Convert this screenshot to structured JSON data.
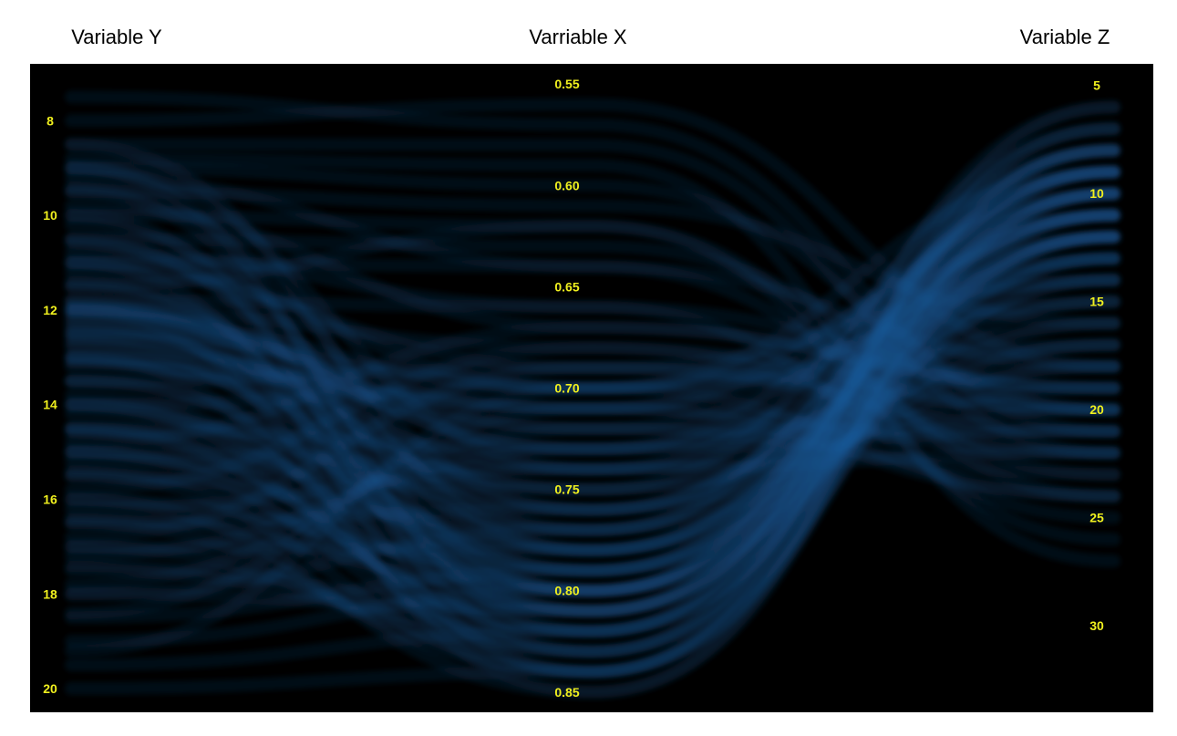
{
  "chart_data": {
    "type": "parallel_coordinates",
    "background_color": "#000000",
    "line_color": "#1f5f9f",
    "tick_color": "#f0f01e",
    "axes": [
      {
        "id": "y",
        "name": "Variable Y",
        "ticks": [
          8,
          10,
          12,
          14,
          16,
          18,
          20
        ],
        "tick_labels": [
          "8",
          "10",
          "12",
          "14",
          "16",
          "18",
          "20"
        ],
        "range": [
          6.8,
          20.5
        ]
      },
      {
        "id": "x",
        "name": "Varriable X",
        "ticks": [
          0.55,
          0.6,
          0.65,
          0.7,
          0.75,
          0.8,
          0.85
        ],
        "tick_labels": [
          "0.55",
          "0.60",
          "0.65",
          "0.70",
          "0.75",
          "0.80",
          "0.85"
        ],
        "range": [
          0.54,
          0.86
        ]
      },
      {
        "id": "z",
        "name": "Variable Z",
        "ticks": [
          5,
          10,
          15,
          20,
          25,
          30
        ],
        "tick_labels": [
          "5",
          "10",
          "15",
          "20",
          "25",
          "30"
        ],
        "range": [
          4,
          34
        ]
      }
    ],
    "records": [
      [
        8.0,
        0.56,
        18
      ],
      [
        8.5,
        0.58,
        22
      ],
      [
        9.0,
        0.6,
        20
      ],
      [
        9.5,
        0.61,
        16
      ],
      [
        10.0,
        0.62,
        24
      ],
      [
        10.5,
        0.63,
        20
      ],
      [
        11.0,
        0.64,
        18
      ],
      [
        11.5,
        0.62,
        26
      ],
      [
        7.5,
        0.57,
        21
      ],
      [
        8.8,
        0.59,
        27
      ],
      [
        9.2,
        0.64,
        23
      ],
      [
        10.8,
        0.66,
        19
      ],
      [
        12.0,
        0.68,
        22
      ],
      [
        12.5,
        0.7,
        17
      ],
      [
        13.0,
        0.71,
        24
      ],
      [
        13.5,
        0.69,
        20
      ],
      [
        14.0,
        0.7,
        15
      ],
      [
        11.8,
        0.66,
        25
      ],
      [
        12.8,
        0.72,
        21
      ],
      [
        14.5,
        0.73,
        18
      ],
      [
        15.0,
        0.74,
        22
      ],
      [
        9.8,
        0.67,
        19
      ],
      [
        11.2,
        0.69,
        14
      ],
      [
        12.2,
        0.7,
        12
      ],
      [
        13.2,
        0.71,
        11
      ],
      [
        11.0,
        0.7,
        9
      ],
      [
        12.0,
        0.73,
        10
      ],
      [
        12.5,
        0.75,
        8
      ],
      [
        13.0,
        0.77,
        7
      ],
      [
        13.5,
        0.78,
        9
      ],
      [
        14.0,
        0.8,
        6
      ],
      [
        14.5,
        0.82,
        7
      ],
      [
        15.0,
        0.83,
        8
      ],
      [
        15.5,
        0.84,
        6
      ],
      [
        16.0,
        0.85,
        9
      ],
      [
        16.5,
        0.84,
        11
      ],
      [
        17.0,
        0.83,
        10
      ],
      [
        17.5,
        0.82,
        12
      ],
      [
        18.0,
        0.81,
        13
      ],
      [
        18.5,
        0.79,
        11
      ],
      [
        19.0,
        0.8,
        14
      ],
      [
        19.5,
        0.82,
        12
      ],
      [
        20.0,
        0.84,
        10
      ],
      [
        12.0,
        0.76,
        11
      ],
      [
        12.3,
        0.79,
        9
      ],
      [
        11.5,
        0.8,
        8
      ],
      [
        10.5,
        0.81,
        10
      ],
      [
        9.5,
        0.8,
        12
      ],
      [
        8.5,
        0.78,
        11
      ],
      [
        9.0,
        0.82,
        7
      ],
      [
        10.0,
        0.83,
        8
      ],
      [
        11.0,
        0.84,
        9
      ],
      [
        12.0,
        0.85,
        10
      ],
      [
        13.0,
        0.84,
        12
      ],
      [
        14.0,
        0.83,
        13
      ],
      [
        15.0,
        0.8,
        14
      ],
      [
        16.0,
        0.79,
        15
      ],
      [
        17.0,
        0.78,
        16
      ],
      [
        18.0,
        0.77,
        17
      ],
      [
        16.5,
        0.76,
        13
      ],
      [
        15.5,
        0.77,
        12
      ],
      [
        14.5,
        0.78,
        11
      ],
      [
        13.5,
        0.79,
        10
      ],
      [
        12.7,
        0.8,
        9
      ],
      [
        11.8,
        0.81,
        8
      ],
      [
        12.1,
        0.72,
        13
      ],
      [
        12.4,
        0.71,
        14
      ],
      [
        11.9,
        0.73,
        15
      ],
      [
        12.6,
        0.74,
        16
      ],
      [
        13.1,
        0.75,
        17
      ],
      [
        14.2,
        0.76,
        18
      ],
      [
        15.2,
        0.75,
        19
      ],
      [
        16.2,
        0.74,
        20
      ],
      [
        17.2,
        0.73,
        21
      ],
      [
        17.8,
        0.72,
        23
      ],
      [
        18.4,
        0.71,
        22
      ],
      [
        19.2,
        0.7,
        24
      ],
      [
        16.8,
        0.69,
        21
      ],
      [
        15.8,
        0.68,
        20
      ],
      [
        14.8,
        0.67,
        19
      ],
      [
        9.0,
        0.74,
        10
      ],
      [
        9.4,
        0.76,
        11
      ],
      [
        10.2,
        0.77,
        9
      ],
      [
        10.6,
        0.78,
        12
      ],
      [
        11.4,
        0.79,
        13
      ],
      [
        13.8,
        0.81,
        12
      ],
      [
        14.6,
        0.82,
        11
      ],
      [
        15.4,
        0.81,
        10
      ],
      [
        16.4,
        0.8,
        9
      ],
      [
        17.4,
        0.81,
        8
      ]
    ]
  }
}
